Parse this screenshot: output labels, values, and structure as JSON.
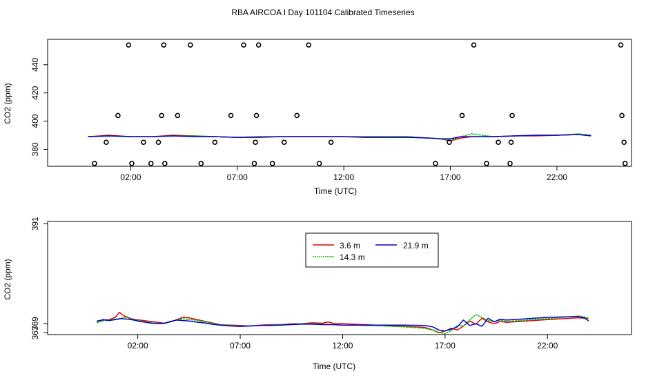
{
  "title": "RBA AIRCOA I  Day 101104  Calibrated Timeseries",
  "colors": {
    "3.6 m": "#e00000",
    "14.3 m": "#00c000",
    "21.9 m": "#0000d0",
    "flag": "#000000"
  },
  "chart_data": [
    {
      "type": "line",
      "name": "top",
      "xlabel": "Time (UTC)",
      "ylabel": "CO2 (ppm)",
      "xlim": [
        -1.9,
        25.5
      ],
      "ylim": [
        368,
        458
      ],
      "xticks": [
        2,
        7,
        12,
        17,
        22
      ],
      "xtick_labels": [
        "02:00",
        "07:00",
        "12:00",
        "17:00",
        "22:00"
      ],
      "yticks": [
        380,
        400,
        420,
        440
      ],
      "ytick_labels": [
        "380",
        "400",
        "420",
        "440"
      ],
      "grid": false,
      "series": [
        {
          "name": "3.6 m",
          "x": [
            0,
            1,
            2,
            3,
            4,
            5,
            6,
            7,
            8,
            9,
            10,
            11,
            12,
            13,
            14,
            15,
            16,
            16.5,
            17,
            17.5,
            18,
            19,
            20,
            21,
            22,
            23,
            23.6
          ],
          "values": [
            389,
            390,
            389,
            389,
            390,
            389.5,
            389,
            388.5,
            389,
            389,
            389,
            389,
            389,
            389,
            389,
            389,
            388,
            387.5,
            386,
            388,
            389,
            389,
            389.5,
            389.5,
            390,
            390.5,
            390
          ]
        },
        {
          "name": "14.3 m",
          "x": [
            0,
            1,
            2,
            3,
            4,
            5,
            6,
            7,
            8,
            9,
            10,
            11,
            12,
            13,
            14,
            15,
            16,
            16.5,
            17,
            17.5,
            18,
            19,
            20,
            21,
            22,
            23,
            23.6
          ],
          "values": [
            389,
            389.5,
            389,
            389,
            389.5,
            389.5,
            389,
            388.5,
            389,
            389,
            389,
            389,
            389,
            389,
            389,
            389,
            388,
            387.5,
            386.5,
            389,
            391,
            389,
            389.5,
            390,
            390,
            391,
            390
          ]
        },
        {
          "name": "21.9 m",
          "x": [
            0,
            1,
            2,
            3,
            4,
            5,
            6,
            7,
            8,
            9,
            10,
            11,
            12,
            13,
            14,
            15,
            16,
            16.5,
            17,
            17.5,
            18,
            19,
            20,
            21,
            22,
            23,
            23.6
          ],
          "values": [
            389,
            389.5,
            389,
            389,
            389.5,
            389,
            389,
            388.5,
            388.5,
            389,
            389,
            389,
            389,
            388.5,
            388.5,
            388.5,
            388,
            387.5,
            387.5,
            389,
            389,
            389,
            389.5,
            390,
            390,
            390.5,
            389.5
          ]
        }
      ],
      "flags": {
        "x": [
          0.3,
          0.85,
          1.4,
          1.9,
          2.05,
          2.6,
          2.95,
          3.3,
          3.45,
          3.55,
          3.6,
          4.2,
          4.8,
          5.3,
          5.95,
          6.7,
          7.3,
          7.8,
          7.85,
          7.9,
          8.0,
          8.65,
          9.2,
          9.8,
          10.35,
          10.85,
          11.4,
          16.3,
          16.95,
          17.55,
          18.1,
          18.7,
          19.25,
          19.8,
          19.85,
          19.9,
          25.0,
          25.05,
          25.15,
          25.2
        ],
        "values": [
          370,
          385,
          404,
          454,
          370,
          385,
          370,
          385,
          404,
          454,
          370,
          404,
          454,
          370,
          385,
          404,
          454,
          370,
          385,
          404,
          454,
          370,
          385,
          404,
          454,
          370,
          385,
          370,
          385,
          404,
          454,
          370,
          385,
          370,
          385,
          404,
          454,
          404,
          385,
          370
        ]
      }
    },
    {
      "type": "line",
      "name": "bottom",
      "xlabel": "Time (UTC)",
      "ylabel": "CO2 (ppm)",
      "xlim": [
        -2.4,
        26.1
      ],
      "ylim": [
        366.6,
        391.5
      ],
      "xticks": [
        2,
        7,
        12,
        17,
        22
      ],
      "xtick_labels": [
        "02:00",
        "07:00",
        "12:00",
        "17:00",
        "22:00"
      ],
      "yticks": [
        367,
        369,
        391
      ],
      "ytick_labels": [
        "367",
        "369",
        "391"
      ],
      "grid": false,
      "legend": {
        "position": "top-center",
        "entries": [
          "3.6 m",
          "14.3 m",
          "21.9 m"
        ]
      },
      "series": [
        {
          "name": "3.6 m",
          "x": [
            0,
            0.3,
            0.6,
            0.9,
            1.1,
            1.3,
            1.6,
            1.9,
            2.3,
            2.6,
            3.0,
            3.3,
            3.6,
            3.9,
            4.2,
            4.5,
            4.8,
            5.2,
            5.6,
            6.0,
            6.5,
            7.0,
            7.5,
            8.0,
            8.5,
            9.0,
            9.5,
            10.0,
            10.5,
            11.0,
            11.3,
            11.6,
            12.0,
            12.5,
            13.0,
            14.0,
            15.0,
            16.0,
            16.4,
            16.7,
            17.0,
            17.3,
            17.6,
            17.9,
            18.2,
            18.5,
            18.8,
            19.1,
            19.4,
            19.7,
            20.0,
            22.0,
            23.5,
            23.8,
            24.0
          ],
          "values": [
            369.6,
            369.8,
            369.9,
            370.4,
            371.5,
            370.8,
            370.2,
            369.9,
            369.7,
            369.5,
            369.3,
            369.1,
            369.4,
            369.9,
            370.4,
            370.3,
            370.0,
            369.6,
            369.2,
            368.8,
            368.7,
            368.6,
            368.5,
            368.7,
            368.8,
            368.8,
            369.0,
            369.0,
            369.2,
            369.1,
            369.4,
            369.0,
            369.0,
            368.9,
            368.8,
            368.6,
            368.4,
            368.2,
            367.6,
            367.0,
            367.4,
            368.0,
            367.6,
            368.5,
            369.6,
            368.9,
            370.2,
            369.4,
            369.0,
            369.5,
            369.3,
            369.9,
            370.3,
            370.2,
            370.1
          ]
        },
        {
          "name": "14.3 m",
          "x": [
            0,
            0.3,
            0.6,
            0.9,
            1.2,
            1.5,
            1.8,
            2.1,
            2.4,
            2.7,
            3.0,
            3.3,
            3.6,
            3.9,
            4.2,
            4.5,
            4.8,
            5.2,
            5.6,
            6.0,
            6.5,
            7.0,
            7.5,
            8.0,
            8.5,
            9.0,
            9.5,
            10.0,
            10.5,
            11.0,
            11.5,
            12.0,
            12.5,
            13.0,
            14.0,
            15.0,
            16.0,
            16.4,
            16.7,
            17.0,
            17.3,
            17.6,
            17.9,
            18.2,
            18.5,
            18.8,
            19.1,
            19.4,
            19.7,
            20.0,
            22.0,
            23.5,
            23.8,
            24.0
          ],
          "values": [
            369.2,
            369.6,
            369.8,
            370.0,
            370.2,
            370.5,
            369.9,
            369.6,
            369.4,
            369.2,
            369.1,
            369.0,
            369.5,
            369.8,
            370.1,
            369.9,
            369.8,
            369.5,
            369.1,
            368.8,
            368.6,
            368.5,
            368.5,
            368.6,
            368.7,
            368.8,
            368.9,
            369.0,
            369.0,
            368.9,
            368.8,
            368.7,
            368.7,
            368.6,
            368.5,
            368.3,
            368.0,
            367.6,
            367.1,
            366.8,
            367.5,
            368.6,
            368.5,
            369.8,
            371.0,
            370.4,
            369.7,
            369.5,
            369.8,
            369.5,
            370.1,
            370.7,
            370.5,
            370.2
          ]
        },
        {
          "name": "21.9 m",
          "x": [
            0,
            0.3,
            0.6,
            0.9,
            1.2,
            1.5,
            1.8,
            2.1,
            2.4,
            2.7,
            3.0,
            3.3,
            3.6,
            3.9,
            4.2,
            4.5,
            4.8,
            5.2,
            5.6,
            6.0,
            6.5,
            7.0,
            7.5,
            8.0,
            8.5,
            9.0,
            9.5,
            10.0,
            10.5,
            11.0,
            11.5,
            12.0,
            12.5,
            13.0,
            14.0,
            15.0,
            16.0,
            16.4,
            16.7,
            17.0,
            17.3,
            17.6,
            17.9,
            18.2,
            18.5,
            18.8,
            19.1,
            19.4,
            19.7,
            20.0,
            22.0,
            23.5,
            23.8,
            24.0
          ],
          "values": [
            369.5,
            369.9,
            369.7,
            369.9,
            370.1,
            370.0,
            369.8,
            369.5,
            369.3,
            369.1,
            369.0,
            369.1,
            369.5,
            369.8,
            369.7,
            369.6,
            369.4,
            369.2,
            368.9,
            368.7,
            368.5,
            368.4,
            368.5,
            368.6,
            368.6,
            368.7,
            368.8,
            368.9,
            368.9,
            368.8,
            368.8,
            368.7,
            368.7,
            368.7,
            368.7,
            368.7,
            368.6,
            368.3,
            367.6,
            367.4,
            367.8,
            368.3,
            369.8,
            368.6,
            369.0,
            368.4,
            370.2,
            369.4,
            370.0,
            369.8,
            370.4,
            370.6,
            370.3,
            369.6
          ]
        }
      ]
    }
  ]
}
